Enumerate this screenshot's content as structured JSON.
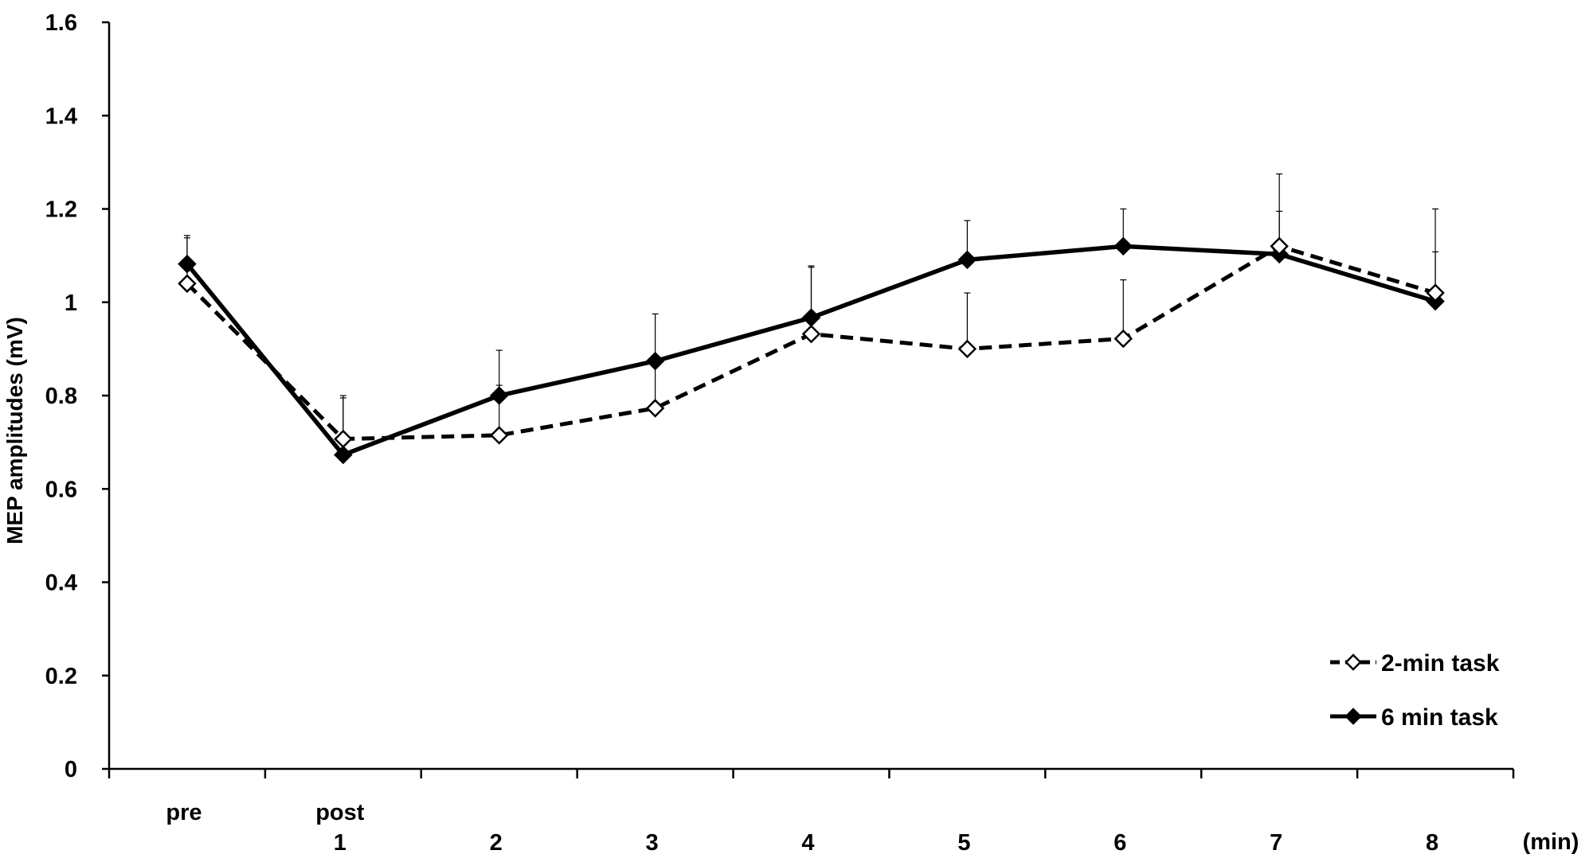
{
  "chart_data": {
    "type": "line",
    "title": "",
    "ylabel": "MEP amplitudes (mV)",
    "xunit": "(min)",
    "ylim": [
      0,
      1.6
    ],
    "yticks": [
      "0",
      "0.2",
      "0.4",
      "0.6",
      "0.8",
      "1",
      "1.2",
      "1.4",
      "1.6"
    ],
    "categories": [
      {
        "top": "pre",
        "bottom": ""
      },
      {
        "top": "post",
        "bottom": "1"
      },
      {
        "top": "",
        "bottom": "2"
      },
      {
        "top": "",
        "bottom": "3"
      },
      {
        "top": "",
        "bottom": "4"
      },
      {
        "top": "",
        "bottom": "5"
      },
      {
        "top": "",
        "bottom": "6"
      },
      {
        "top": "",
        "bottom": "7"
      },
      {
        "top": "",
        "bottom": "8"
      }
    ],
    "series": [
      {
        "name": "2-min task",
        "line_style": "dashed",
        "marker": "open-diamond",
        "values": [
          1.04,
          0.707,
          0.715,
          0.773,
          0.932,
          0.9,
          0.922,
          1.12,
          1.02
        ],
        "error_top": [
          1.138,
          0.8,
          0.822,
          0.87,
          1.075,
          1.02,
          1.048,
          1.195,
          1.108
        ]
      },
      {
        "name": "6 min task",
        "line_style": "solid",
        "marker": "filled-diamond",
        "values": [
          1.082,
          0.673,
          0.8,
          0.874,
          0.967,
          1.091,
          1.12,
          1.103,
          1.002
        ],
        "error_top": [
          1.143,
          0.795,
          0.897,
          0.975,
          1.078,
          1.175,
          1.2,
          1.275,
          1.2
        ]
      }
    ],
    "legend_position": "bottom-right",
    "grid": false
  }
}
